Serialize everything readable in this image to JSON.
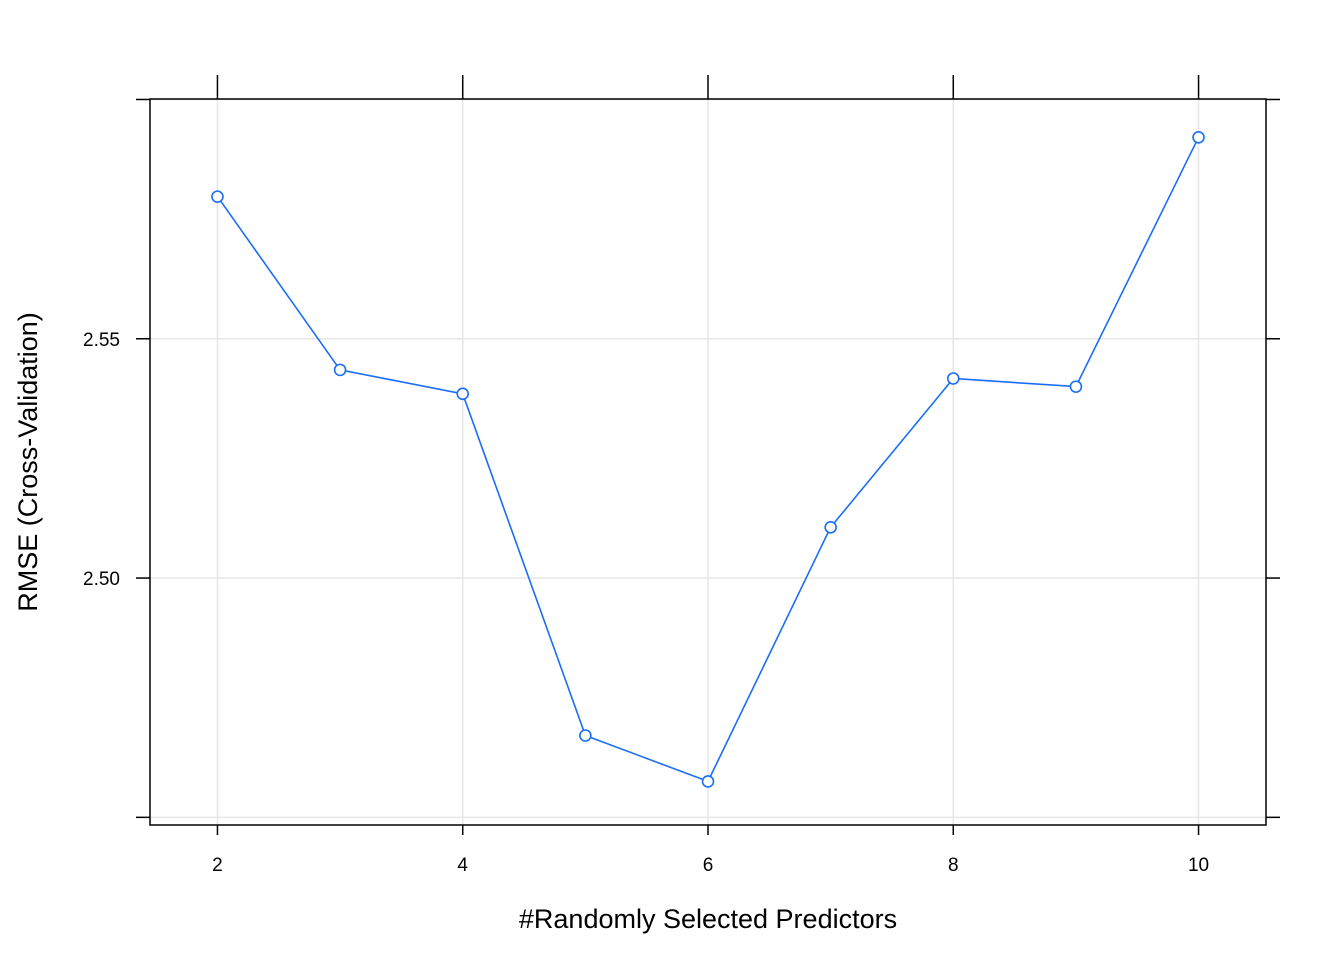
{
  "chart_data": {
    "type": "line",
    "title": "",
    "xlabel": "#Randomly Selected Predictors",
    "ylabel": "RMSE (Cross-Validation)",
    "x": [
      2,
      3,
      4,
      5,
      6,
      7,
      8,
      9,
      10
    ],
    "series": [
      {
        "values": [
          2.5797,
          2.5435,
          2.5385,
          2.4671,
          2.4575,
          2.5106,
          2.5417,
          2.54,
          2.5921
        ]
      }
    ],
    "xticks": [
      2,
      4,
      6,
      8,
      10
    ],
    "xtick_labels": [
      "2",
      "4",
      "6",
      "8",
      "10"
    ],
    "yticks": [
      2.45,
      2.5,
      2.55,
      2.6
    ],
    "ytick_labels": [
      "",
      "2.50",
      "2.55",
      ""
    ],
    "xlim": [
      1.45,
      10.55
    ],
    "ylim": [
      2.4484,
      2.6001
    ],
    "grid": true,
    "colors": {
      "line": "#1a6ef5",
      "grid": "#e6e6e6",
      "frame": "#000000"
    }
  }
}
